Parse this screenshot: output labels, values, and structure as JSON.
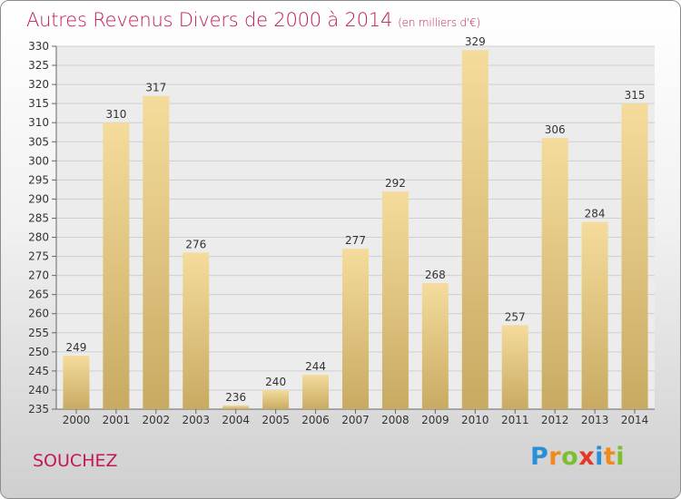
{
  "chart_data": {
    "type": "bar",
    "title": "Autres Revenus Divers de 2000 à 2014",
    "subtitle": "(en milliers d'€)",
    "categories": [
      "2000",
      "2001",
      "2002",
      "2003",
      "2004",
      "2005",
      "2006",
      "2007",
      "2008",
      "2009",
      "2010",
      "2011",
      "2012",
      "2013",
      "2014"
    ],
    "values": [
      249,
      310,
      317,
      276,
      236,
      240,
      244,
      277,
      292,
      268,
      329,
      257,
      306,
      284,
      315
    ],
    "ylim": [
      235,
      330
    ],
    "ytick_step": 5,
    "grid": true,
    "bar_color_top": "#f5dc9c",
    "bar_color_bottom": "#c8aa62"
  },
  "location": "SOUCHEZ",
  "logo": {
    "letters": [
      "P",
      "r",
      "o",
      "x",
      "i",
      "t",
      "i"
    ],
    "colors": [
      "#2a8fd8",
      "#f08a1c",
      "#7cbf2e",
      "#e8352a",
      "#2a8fd8",
      "#f08a1c",
      "#7cbf2e"
    ]
  }
}
